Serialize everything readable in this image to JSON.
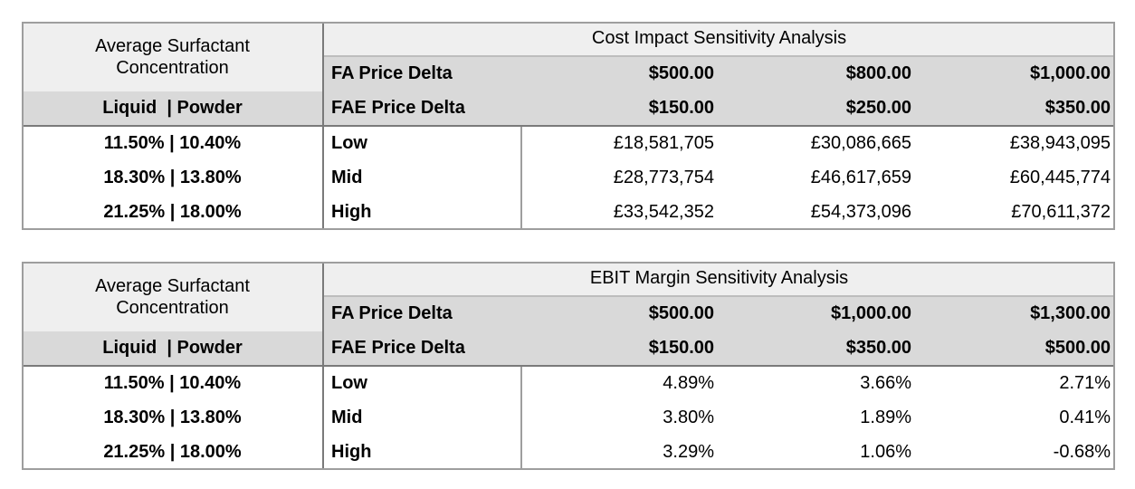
{
  "tables": [
    {
      "title": "Cost Impact Sensitivity Analysis",
      "left_header_line1": "Average Surfactant",
      "left_header_line2": "Concentration",
      "left_subheader": "Liquid  | Powder",
      "fa_label": "FA Price Delta",
      "fae_label": "FAE Price Delta",
      "fa_values": [
        "$500.00",
        "$800.00",
        "$1,000.00"
      ],
      "fae_values": [
        "$150.00",
        "$250.00",
        "$350.00"
      ],
      "rows": [
        {
          "conc": "11.50% | 10.40%",
          "label": "Low",
          "values": [
            "£18,581,705",
            "£30,086,665",
            "£38,943,095"
          ]
        },
        {
          "conc": "18.30% | 13.80%",
          "label": "Mid",
          "values": [
            "£28,773,754",
            "£46,617,659",
            "£60,445,774"
          ]
        },
        {
          "conc": "21.25% | 18.00%",
          "label": "High",
          "values": [
            "£33,542,352",
            "£54,373,096",
            "£70,611,372"
          ]
        }
      ]
    },
    {
      "title": "EBIT Margin Sensitivity Analysis",
      "left_header_line1": "Average Surfactant",
      "left_header_line2": "Concentration",
      "left_subheader": "Liquid  | Powder",
      "fa_label": "FA Price Delta",
      "fae_label": "FAE Price Delta",
      "fa_values": [
        "$500.00",
        "$1,000.00",
        "$1,300.00"
      ],
      "fae_values": [
        "$150.00",
        "$350.00",
        "$500.00"
      ],
      "rows": [
        {
          "conc": "11.50% | 10.40%",
          "label": "Low",
          "values": [
            "4.89%",
            "3.66%",
            "2.71%"
          ]
        },
        {
          "conc": "18.30% | 13.80%",
          "label": "Mid",
          "values": [
            "3.80%",
            "1.89%",
            "0.41%"
          ]
        },
        {
          "conc": "21.25% | 18.00%",
          "label": "High",
          "values": [
            "3.29%",
            "1.06%",
            "-0.68%"
          ]
        }
      ]
    }
  ]
}
